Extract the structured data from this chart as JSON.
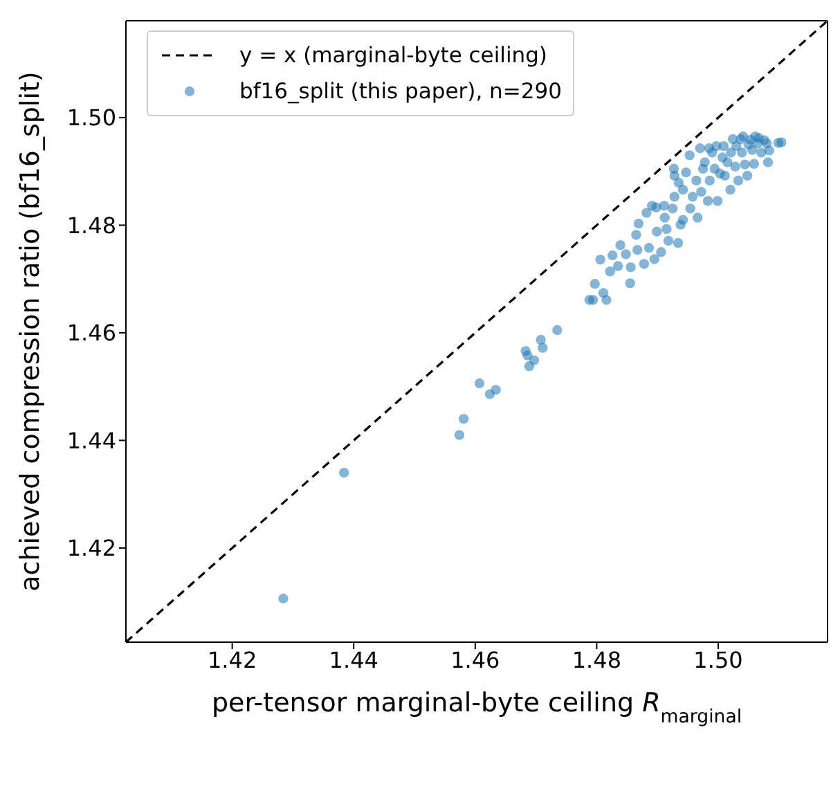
{
  "chart_data": {
    "type": "scatter",
    "xlabel": "per-tensor marginal-byte ceiling R$_{marginal}$",
    "ylabel": "achieved compression ratio (bf16_split)",
    "xlim": [
      1.4025,
      1.518
    ],
    "ylim": [
      1.4025,
      1.518
    ],
    "xticks": [
      1.42,
      1.44,
      1.46,
      1.48,
      {
        "value": 1.5,
        "label": "1.50"
      }
    ],
    "yticks": [
      1.42,
      1.44,
      1.46,
      1.48,
      {
        "value": 1.5,
        "label": "1.50"
      }
    ],
    "legend": "top left",
    "series": [
      {
        "name": "y = x (marginal-byte ceiling)",
        "type": "line",
        "color": "#000000",
        "line_style": "dashed",
        "marker": "none",
        "x": [
          1.4025,
          1.518
        ],
        "values": [
          1.4025,
          1.518
        ]
      },
      {
        "name": "bf16_split (this paper), n=290",
        "color": "#1f77b4",
        "marker": "circle",
        "x": [
          1.4284,
          1.4384,
          1.4574,
          1.4581,
          1.4607,
          1.4624,
          1.4634,
          1.4683,
          1.4686,
          1.4697,
          1.4689,
          1.4708,
          1.4711,
          1.4735,
          1.4788,
          1.4794,
          1.4816,
          1.4811,
          1.4797,
          1.4806,
          1.4822,
          1.4826,
          1.4835,
          1.4839,
          1.4848,
          1.4855,
          1.4856,
          1.4865,
          1.4867,
          1.4869,
          1.4878,
          1.4882,
          1.4886,
          1.4891,
          1.4898,
          1.4899,
          1.4895,
          1.4906,
          1.4912,
          1.4918,
          1.4915,
          1.4925,
          1.4928,
          1.4928,
          1.4934,
          1.4938,
          1.4942,
          1.4935,
          1.4942,
          1.4947,
          1.4953,
          1.4954,
          1.4958,
          1.4964,
          1.4966,
          1.497,
          1.4972,
          1.4975,
          1.4978,
          1.4983,
          1.4985,
          1.4986,
          1.499,
          1.4994,
          1.4997,
          1.4999,
          1.5003,
          1.5007,
          1.5009,
          1.5011,
          1.5015,
          1.502,
          1.5021,
          1.5024,
          1.5028,
          1.503,
          1.5033,
          1.5037,
          1.5039,
          1.5041,
          1.5044,
          1.5048,
          1.505,
          1.5053,
          1.5056,
          1.5059,
          1.5061,
          1.5065,
          1.5067,
          1.5071,
          1.5076,
          1.508,
          1.5084,
          1.5082,
          1.5099,
          1.5104,
          1.4927,
          1.4911
        ],
        "values": [
          1.4106,
          1.434,
          1.441,
          1.444,
          1.4506,
          1.4486,
          1.4494,
          1.4566,
          1.4558,
          1.4549,
          1.4538,
          1.4587,
          1.4572,
          1.4605,
          1.4661,
          1.4661,
          1.4661,
          1.4674,
          1.4691,
          1.4736,
          1.4714,
          1.4744,
          1.4724,
          1.4763,
          1.4746,
          1.4692,
          1.4722,
          1.4782,
          1.4754,
          1.4803,
          1.4728,
          1.4823,
          1.4758,
          1.4836,
          1.4833,
          1.4788,
          1.4737,
          1.475,
          1.4814,
          1.4771,
          1.4793,
          1.4831,
          1.4853,
          1.4892,
          1.4767,
          1.4801,
          1.481,
          1.4879,
          1.4866,
          1.4898,
          1.493,
          1.4831,
          1.4853,
          1.4883,
          1.4814,
          1.4943,
          1.4862,
          1.4905,
          1.4917,
          1.4845,
          1.4943,
          1.4883,
          1.4935,
          1.4905,
          1.4947,
          1.4845,
          1.4896,
          1.4926,
          1.4947,
          1.4892,
          1.4917,
          1.4866,
          1.4935,
          1.496,
          1.4909,
          1.4947,
          1.4883,
          1.496,
          1.4935,
          1.4965,
          1.4913,
          1.4892,
          1.495,
          1.4959,
          1.494,
          1.4914,
          1.4965,
          1.4952,
          1.4962,
          1.4935,
          1.4958,
          1.4952,
          1.4939,
          1.4917,
          1.4953,
          1.4954,
          1.4905,
          1.4836
        ]
      }
    ]
  }
}
